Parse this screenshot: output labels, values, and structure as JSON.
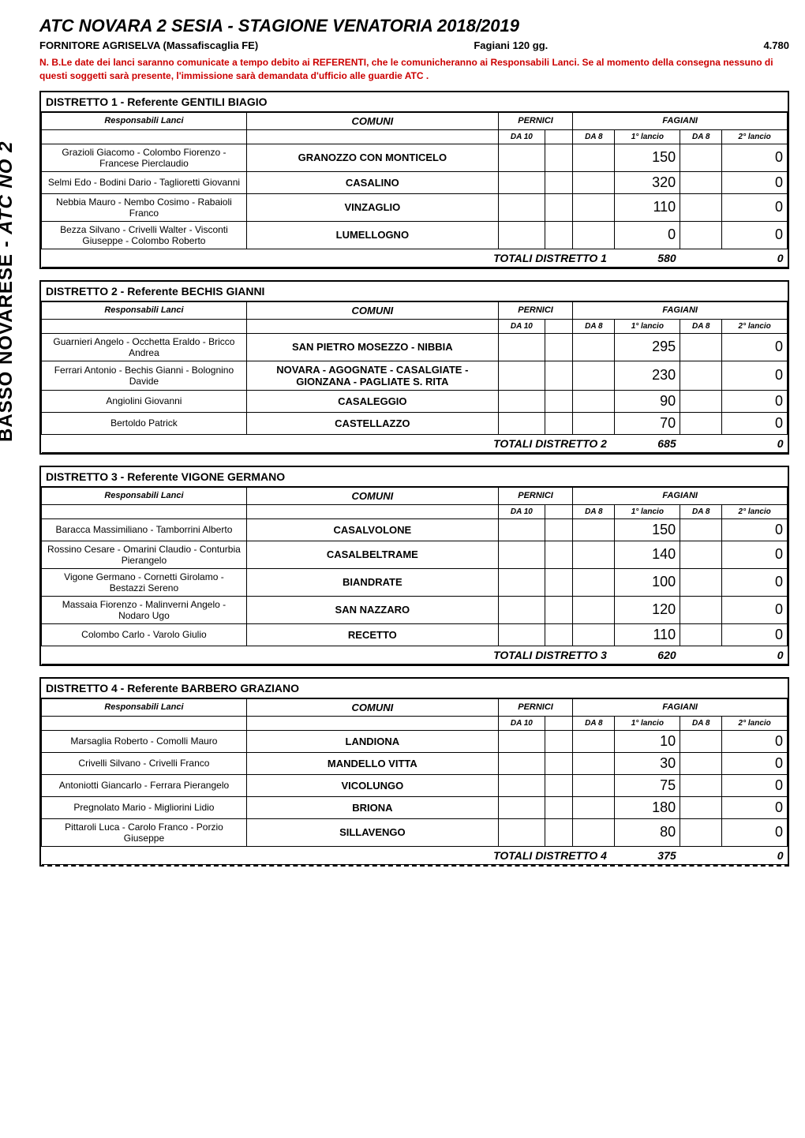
{
  "page": {
    "title": "ATC NOVARA 2 SESIA  - STAGIONE VENATORIA 2018/2019",
    "supplier": "FORNITORE AGRISELVA (Massafiscaglia FE)",
    "fagiani_label": "Fagiani 120 gg.",
    "fagiani_total": "4.780",
    "note": "N. B.Le date dei lanci saranno comunicate a tempo debito ai REFERENTI, che le comunicheranno ai Responsabili Lanci. Se al momento della consegna nessuno di questi soggetti sarà presente, l'immissione sarà demandata d'ufficio alle guardie ATC .",
    "side_label_plain": "BASSO NOVARESE - ",
    "side_label_italic": "ATC NO 2"
  },
  "headers": {
    "responsabili": "Responsabili Lanci",
    "comuni": "COMUNI",
    "pernici": "PERNICI",
    "fagiani": "FAGIANI",
    "da10": "DA 10",
    "da8": "DA 8",
    "lancio1": "1° lancio",
    "lancio2": "2° lancio",
    "totali_prefix": "TOTALI DISTRETTO "
  },
  "districts": [
    {
      "n": "1",
      "title": "DISTRETTO 1 -  Referente GENTILI BIAGIO",
      "rows": [
        {
          "resp": "Grazioli Giacomo - Colombo Fiorenzo - Francese Pierclaudio",
          "comuni": "GRANOZZO CON MONTICELO",
          "l1": "150",
          "l2": "0"
        },
        {
          "resp": "Selmi Edo - Bodini Dario - Taglioretti Giovanni",
          "comuni": "CASALINO",
          "l1": "320",
          "l2": "0"
        },
        {
          "resp": "Nebbia Mauro - Nembo Cosimo - Rabaioli Franco",
          "comuni": "VINZAGLIO",
          "l1": "110",
          "l2": "0"
        },
        {
          "resp": "Bezza Silvano - Crivelli Walter - Visconti Giuseppe - Colombo Roberto",
          "comuni": "LUMELLOGNO",
          "l1": "0",
          "l2": "0"
        }
      ],
      "tot1": "580",
      "tot2": "0"
    },
    {
      "n": "2",
      "title": "DISTRETTO 2 -  Referente BECHIS GIANNI",
      "rows": [
        {
          "resp": "Guarnieri Angelo - Occhetta Eraldo - Bricco Andrea",
          "comuni": "SAN PIETRO MOSEZZO - NIBBIA",
          "l1": "295",
          "l2": "0"
        },
        {
          "resp": "Ferrari Antonio - Bechis Gianni - Bolognino Davide",
          "comuni": "NOVARA - AGOGNATE - CASALGIATE - GIONZANA - PAGLIATE S. RITA",
          "l1": "230",
          "l2": "0"
        },
        {
          "resp": "Angiolini Giovanni",
          "comuni": "CASALEGGIO",
          "l1": "90",
          "l2": "0"
        },
        {
          "resp": "Bertoldo Patrick",
          "comuni": "CASTELLAZZO",
          "l1": "70",
          "l2": "0"
        }
      ],
      "tot1": "685",
      "tot2": "0"
    },
    {
      "n": "3",
      "title": "DISTRETTO 3 -  Referente VIGONE GERMANO",
      "rows": [
        {
          "resp": "Baracca Massimiliano - Tamborrini Alberto",
          "comuni": "CASALVOLONE",
          "l1": "150",
          "l2": "0"
        },
        {
          "resp": "Rossino Cesare - Omarini Claudio - Conturbia Pierangelo",
          "comuni": "CASALBELTRAME",
          "l1": "140",
          "l2": "0"
        },
        {
          "resp": "Vigone Germano - Cornetti Girolamo - Bestazzi Sereno",
          "comuni": "BIANDRATE",
          "l1": "100",
          "l2": "0"
        },
        {
          "resp": "Massaia Fiorenzo - Malinverni Angelo - Nodaro Ugo",
          "comuni": "SAN NAZZARO",
          "l1": "120",
          "l2": "0"
        },
        {
          "resp": "Colombo Carlo - Varolo Giulio",
          "comuni": "RECETTO",
          "l1": "110",
          "l2": "0"
        }
      ],
      "tot1": "620",
      "tot2": "0"
    },
    {
      "n": "4",
      "title": "DISTRETTO 4 -  Referente BARBERO GRAZIANO",
      "rows": [
        {
          "resp": "Marsaglia Roberto - Comolli Mauro",
          "comuni": "LANDIONA",
          "l1": "10",
          "l2": "0"
        },
        {
          "resp": "Crivelli Silvano - Crivelli Franco",
          "comuni": "MANDELLO VITTA",
          "l1": "30",
          "l2": "0"
        },
        {
          "resp": "Antoniotti Giancarlo - Ferrara Pierangelo",
          "comuni": "VICOLUNGO",
          "l1": "75",
          "l2": "0"
        },
        {
          "resp": "Pregnolato Mario - Migliorini Lidio",
          "comuni": "BRIONA",
          "l1": "180",
          "l2": "0"
        },
        {
          "resp": "Pittaroli Luca - Carolo Franco - Porzio Giuseppe",
          "comuni": "SILLAVENGO",
          "l1": "80",
          "l2": "0"
        }
      ],
      "tot1": "375",
      "tot2": "0",
      "dashed": true
    }
  ]
}
